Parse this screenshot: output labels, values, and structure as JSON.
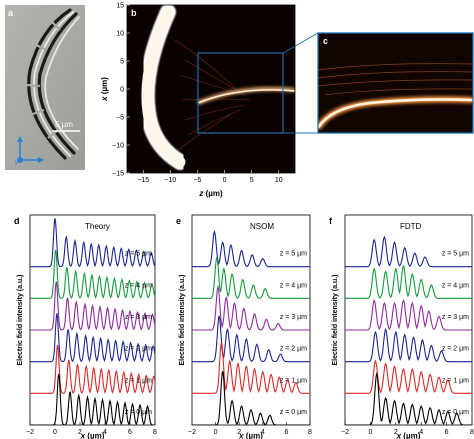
{
  "panel_letters": {
    "a": "a",
    "b": "b",
    "c": "c",
    "d": "d",
    "e": "e",
    "f": "f"
  },
  "panel_a": {
    "scale_bar_label": "5 µm"
  },
  "panel_b": {
    "x_ticks": [
      "−15",
      "−10",
      "−5",
      "0",
      "5",
      "10"
    ],
    "y_ticks": [
      "15",
      "10",
      "5",
      "0",
      "−5",
      "−10",
      "−15"
    ],
    "xlabel_var": "z",
    "xlabel_unit": " (µm)",
    "ylabel_var": "x",
    "ylabel_unit": " (µm)"
  },
  "panel_d": {
    "title": "Theory"
  },
  "panel_e": {
    "title": "NSOM"
  },
  "panel_f": {
    "title": "FDTD"
  },
  "ylabel": "Electric field intensity (a.u.)",
  "xlabel_var": "x",
  "xlabel_unit": " (µm)",
  "x_ticks": [
    "−2",
    "0",
    "2",
    "4",
    "6",
    "8"
  ],
  "z_labels": [
    "z = 5 µm",
    "z = 4 µm",
    "z = 3 µm",
    "z = 2 µm",
    "z = 1 µm",
    "z = 0 µm"
  ],
  "series_colors": [
    "#1c2590",
    "#179a3b",
    "#8e2d9c",
    "#1c2590",
    "#d92a2a",
    "#000000"
  ],
  "colors": {
    "bg_gray": "#a8aaa5",
    "hot_white": "#fff6ea",
    "field_orange": "#e0702a",
    "dark": "#0b0200",
    "inset_border": "#1d6fb0"
  },
  "chart_data": [
    {
      "type": "line",
      "panel": "d",
      "title": "Theory",
      "xlabel": "x (µm)",
      "ylabel": "Electric field intensity (a.u.)",
      "xlim": [
        -2,
        8
      ],
      "series": [
        {
          "name": "z = 5 µm",
          "peaks": [
            [
              0.0,
              0.9
            ],
            [
              0.9,
              0.55
            ],
            [
              1.6,
              0.48
            ],
            [
              2.3,
              0.45
            ],
            [
              2.9,
              0.42
            ],
            [
              3.5,
              0.4
            ],
            [
              4.1,
              0.38
            ],
            [
              4.7,
              0.36
            ],
            [
              5.3,
              0.34
            ],
            [
              5.9,
              0.32
            ],
            [
              6.5,
              0.3
            ],
            [
              7.1,
              0.28
            ],
            [
              7.7,
              0.26
            ]
          ]
        },
        {
          "name": "z = 4 µm",
          "peaks": [
            [
              0.05,
              0.9
            ],
            [
              0.95,
              0.58
            ],
            [
              1.65,
              0.5
            ],
            [
              2.35,
              0.46
            ],
            [
              2.95,
              0.43
            ],
            [
              3.55,
              0.41
            ],
            [
              4.15,
              0.39
            ],
            [
              4.75,
              0.37
            ],
            [
              5.35,
              0.35
            ],
            [
              5.95,
              0.33
            ],
            [
              6.55,
              0.31
            ],
            [
              7.15,
              0.29
            ],
            [
              7.75,
              0.27
            ]
          ]
        },
        {
          "name": "z = 3 µm",
          "peaks": [
            [
              0.1,
              0.9
            ],
            [
              1.0,
              0.6
            ],
            [
              1.7,
              0.52
            ],
            [
              2.4,
              0.48
            ],
            [
              3.0,
              0.45
            ],
            [
              3.6,
              0.43
            ],
            [
              4.2,
              0.41
            ],
            [
              4.8,
              0.39
            ],
            [
              5.4,
              0.37
            ],
            [
              6.0,
              0.35
            ],
            [
              6.6,
              0.33
            ],
            [
              7.2,
              0.31
            ],
            [
              7.8,
              0.29
            ]
          ]
        },
        {
          "name": "z = 2 µm",
          "peaks": [
            [
              0.15,
              0.9
            ],
            [
              1.05,
              0.6
            ],
            [
              1.75,
              0.52
            ],
            [
              2.45,
              0.48
            ],
            [
              3.05,
              0.45
            ],
            [
              3.65,
              0.43
            ],
            [
              4.25,
              0.41
            ],
            [
              4.85,
              0.39
            ],
            [
              5.45,
              0.37
            ],
            [
              6.05,
              0.35
            ],
            [
              6.65,
              0.33
            ],
            [
              7.25,
              0.31
            ],
            [
              7.85,
              0.29
            ]
          ]
        },
        {
          "name": "z = 1 µm",
          "peaks": [
            [
              0.2,
              0.9
            ],
            [
              1.1,
              0.62
            ],
            [
              1.8,
              0.54
            ],
            [
              2.5,
              0.5
            ],
            [
              3.1,
              0.47
            ],
            [
              3.7,
              0.45
            ],
            [
              4.3,
              0.43
            ],
            [
              4.9,
              0.41
            ],
            [
              5.5,
              0.39
            ],
            [
              6.1,
              0.37
            ],
            [
              6.7,
              0.35
            ],
            [
              7.3,
              0.33
            ],
            [
              7.9,
              0.31
            ]
          ]
        },
        {
          "name": "z = 0 µm",
          "peaks": [
            [
              0.3,
              0.95
            ],
            [
              1.2,
              0.62
            ],
            [
              1.9,
              0.55
            ],
            [
              2.6,
              0.52
            ],
            [
              3.2,
              0.49
            ],
            [
              3.8,
              0.47
            ],
            [
              4.4,
              0.45
            ],
            [
              5.0,
              0.43
            ],
            [
              5.6,
              0.41
            ],
            [
              6.2,
              0.39
            ],
            [
              6.8,
              0.37
            ],
            [
              7.4,
              0.35
            ]
          ]
        }
      ]
    },
    {
      "type": "line",
      "panel": "e",
      "title": "NSOM",
      "xlabel": "x (µm)",
      "ylabel": "Electric field intensity (a.u.)",
      "xlim": [
        -2,
        8
      ],
      "series": [
        {
          "name": "z = 5 µm",
          "peaks": [
            [
              -0.1,
              0.65
            ],
            [
              0.6,
              0.45
            ],
            [
              1.3,
              0.4
            ],
            [
              2.2,
              0.3
            ],
            [
              3.1,
              0.22
            ],
            [
              4.0,
              0.15
            ]
          ]
        },
        {
          "name": "z = 4 µm",
          "peaks": [
            [
              0.1,
              0.75
            ],
            [
              0.7,
              0.55
            ],
            [
              1.4,
              0.45
            ],
            [
              2.3,
              0.35
            ],
            [
              3.2,
              0.25
            ],
            [
              4.2,
              0.18
            ]
          ]
        },
        {
          "name": "z = 3 µm",
          "peaks": [
            [
              0.2,
              0.8
            ],
            [
              0.9,
              0.6
            ],
            [
              1.6,
              0.5
            ],
            [
              2.4,
              0.4
            ],
            [
              3.3,
              0.3
            ],
            [
              4.3,
              0.2
            ],
            [
              5.3,
              0.12
            ]
          ]
        },
        {
          "name": "z = 2 µm",
          "peaks": [
            [
              0.3,
              0.85
            ],
            [
              1.0,
              0.6
            ],
            [
              1.8,
              0.5
            ],
            [
              2.6,
              0.42
            ],
            [
              3.5,
              0.32
            ],
            [
              4.5,
              0.22
            ],
            [
              5.5,
              0.14
            ]
          ]
        },
        {
          "name": "z = 1 µm",
          "peaks": [
            [
              0.5,
              0.95
            ],
            [
              1.2,
              0.6
            ],
            [
              1.9,
              0.55
            ],
            [
              2.6,
              0.5
            ],
            [
              3.3,
              0.45
            ],
            [
              4.0,
              0.4
            ],
            [
              4.7,
              0.35
            ],
            [
              5.4,
              0.3
            ],
            [
              6.1,
              0.25
            ],
            [
              6.8,
              0.2
            ]
          ]
        },
        {
          "name": "z = 0 µm",
          "peaks": [
            [
              0.6,
              1.0
            ],
            [
              1.4,
              0.45
            ],
            [
              2.2,
              0.35
            ],
            [
              3.0,
              0.28
            ],
            [
              3.8,
              0.22
            ],
            [
              4.6,
              0.18
            ]
          ]
        }
      ]
    },
    {
      "type": "line",
      "panel": "f",
      "title": "FDTD",
      "xlabel": "x (µm)",
      "ylabel": "Electric field intensity (a.u.)",
      "xlim": [
        -2,
        8
      ],
      "series": [
        {
          "name": "z = 5 µm",
          "peaks": [
            [
              0.3,
              0.5
            ],
            [
              1.1,
              0.55
            ],
            [
              1.9,
              0.45
            ],
            [
              2.7,
              0.35
            ],
            [
              3.5,
              0.25
            ],
            [
              4.3,
              0.18
            ]
          ]
        },
        {
          "name": "z = 4 µm",
          "peaks": [
            [
              0.3,
              0.55
            ],
            [
              1.2,
              0.5
            ],
            [
              2.0,
              0.55
            ],
            [
              2.6,
              0.6
            ],
            [
              3.3,
              0.45
            ],
            [
              4.0,
              0.35
            ],
            [
              4.8,
              0.25
            ]
          ]
        },
        {
          "name": "z = 3 µm",
          "peaks": [
            [
              0.3,
              0.55
            ],
            [
              1.1,
              0.5
            ],
            [
              1.9,
              0.5
            ],
            [
              2.6,
              0.55
            ],
            [
              3.3,
              0.5
            ],
            [
              4.0,
              0.45
            ],
            [
              4.6,
              0.35
            ],
            [
              5.4,
              0.25
            ]
          ]
        },
        {
          "name": "z = 2 µm",
          "peaks": [
            [
              0.4,
              0.55
            ],
            [
              1.2,
              0.6
            ],
            [
              2.0,
              0.55
            ],
            [
              2.7,
              0.5
            ],
            [
              3.4,
              0.45
            ],
            [
              4.1,
              0.4
            ],
            [
              4.8,
              0.3
            ],
            [
              5.6,
              0.2
            ]
          ]
        },
        {
          "name": "z = 1 µm",
          "peaks": [
            [
              0.4,
              0.6
            ],
            [
              1.2,
              0.55
            ],
            [
              1.9,
              0.5
            ],
            [
              2.6,
              0.45
            ],
            [
              3.3,
              0.45
            ],
            [
              4.0,
              0.4
            ],
            [
              4.7,
              0.35
            ],
            [
              5.4,
              0.3
            ],
            [
              6.1,
              0.25
            ]
          ]
        },
        {
          "name": "z = 0 µm",
          "peaks": [
            [
              0.5,
              0.95
            ],
            [
              1.2,
              0.5
            ],
            [
              1.9,
              0.45
            ],
            [
              2.6,
              0.4
            ],
            [
              3.3,
              0.38
            ],
            [
              4.0,
              0.35
            ],
            [
              4.7,
              0.32
            ],
            [
              5.4,
              0.28
            ],
            [
              6.1,
              0.25
            ],
            [
              6.8,
              0.22
            ]
          ]
        }
      ]
    }
  ]
}
